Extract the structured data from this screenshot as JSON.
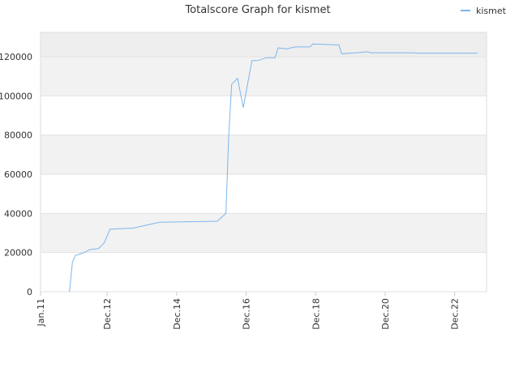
{
  "chart_data": {
    "type": "line",
    "title": "Totalscore Graph for kismet",
    "x": [
      "Nov.11",
      "Dec.11",
      "Jan.12",
      "Feb.12",
      "Apr.12",
      "Jun.12",
      "Sep.12",
      "Nov.12",
      "Jan.13",
      "Sep.13",
      "Jun.14",
      "Feb.16",
      "May.16",
      "Jun.16",
      "Jul.16",
      "Sep.16",
      "Nov.16",
      "Jan.17",
      "Feb.17",
      "Apr.17",
      "Jul.17",
      "Oct.17",
      "Nov.17",
      "Feb.18",
      "May.18",
      "Oct.18",
      "Nov.18",
      "Aug.19",
      "Sep.19",
      "Feb.20",
      "Jun.20",
      "Jul.20",
      "Oct.21",
      "Nov.21",
      "Aug.23"
    ],
    "series": [
      {
        "name": "kismet",
        "color": "#7cb5ec",
        "values": [
          0,
          15000,
          18500,
          19000,
          20000,
          21500,
          22000,
          25000,
          32000,
          32500,
          35500,
          36000,
          40000,
          80000,
          106000,
          109000,
          94000,
          110000,
          118000,
          118000,
          119500,
          119500,
          124500,
          124000,
          125000,
          125000,
          126500,
          126000,
          121500,
          122000,
          122500,
          122000,
          122000,
          121800,
          121800
        ]
      }
    ],
    "xlim": [
      "Jan.11",
      "Nov.23"
    ],
    "xticks": [
      "Jan.11",
      "Dec.12",
      "Dec.14",
      "Dec.16",
      "Dec.18",
      "Dec.20",
      "Dec.22"
    ],
    "ylim": [
      0,
      132400
    ],
    "yticks": [
      0,
      20000,
      40000,
      60000,
      80000,
      100000,
      120000
    ],
    "grid": true,
    "legend": "top-right"
  }
}
